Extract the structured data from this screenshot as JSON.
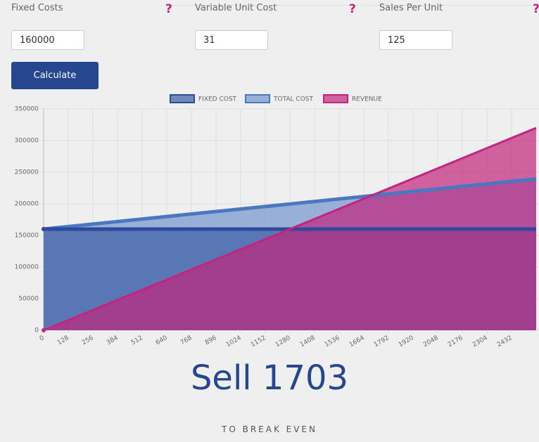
{
  "form": {
    "fields": [
      {
        "label": "Fixed Costs",
        "help": "?",
        "value": "160000"
      },
      {
        "label": "Variable Unit Cost",
        "help": "?",
        "value": "31"
      },
      {
        "label": "Sales Per Unit",
        "help": "?",
        "value": "125"
      }
    ],
    "button": "Calculate"
  },
  "chart_data": {
    "type": "area",
    "x": [
      0,
      2560
    ],
    "series": [
      {
        "name": "FIXED COST",
        "color": "#2e4a9a",
        "values": [
          160000,
          160000
        ]
      },
      {
        "name": "TOTAL COST",
        "color": "#4a78c0",
        "values": [
          160000,
          239360
        ]
      },
      {
        "name": "REVENUE",
        "color": "#c2257e",
        "values": [
          0,
          320000
        ]
      }
    ],
    "xlim": [
      0,
      2560
    ],
    "ylim": [
      0,
      350000
    ],
    "xticks": [
      0,
      128,
      256,
      384,
      512,
      640,
      768,
      896,
      1024,
      1152,
      1280,
      1408,
      1536,
      1664,
      1792,
      1920,
      2048,
      2176,
      2304,
      2432
    ],
    "yticks": [
      0,
      50000,
      100000,
      150000,
      200000,
      250000,
      300000,
      350000
    ],
    "grid": true,
    "legend": "top"
  },
  "result": {
    "headline": "Sell 1703",
    "caption": "TO BREAK EVEN"
  }
}
